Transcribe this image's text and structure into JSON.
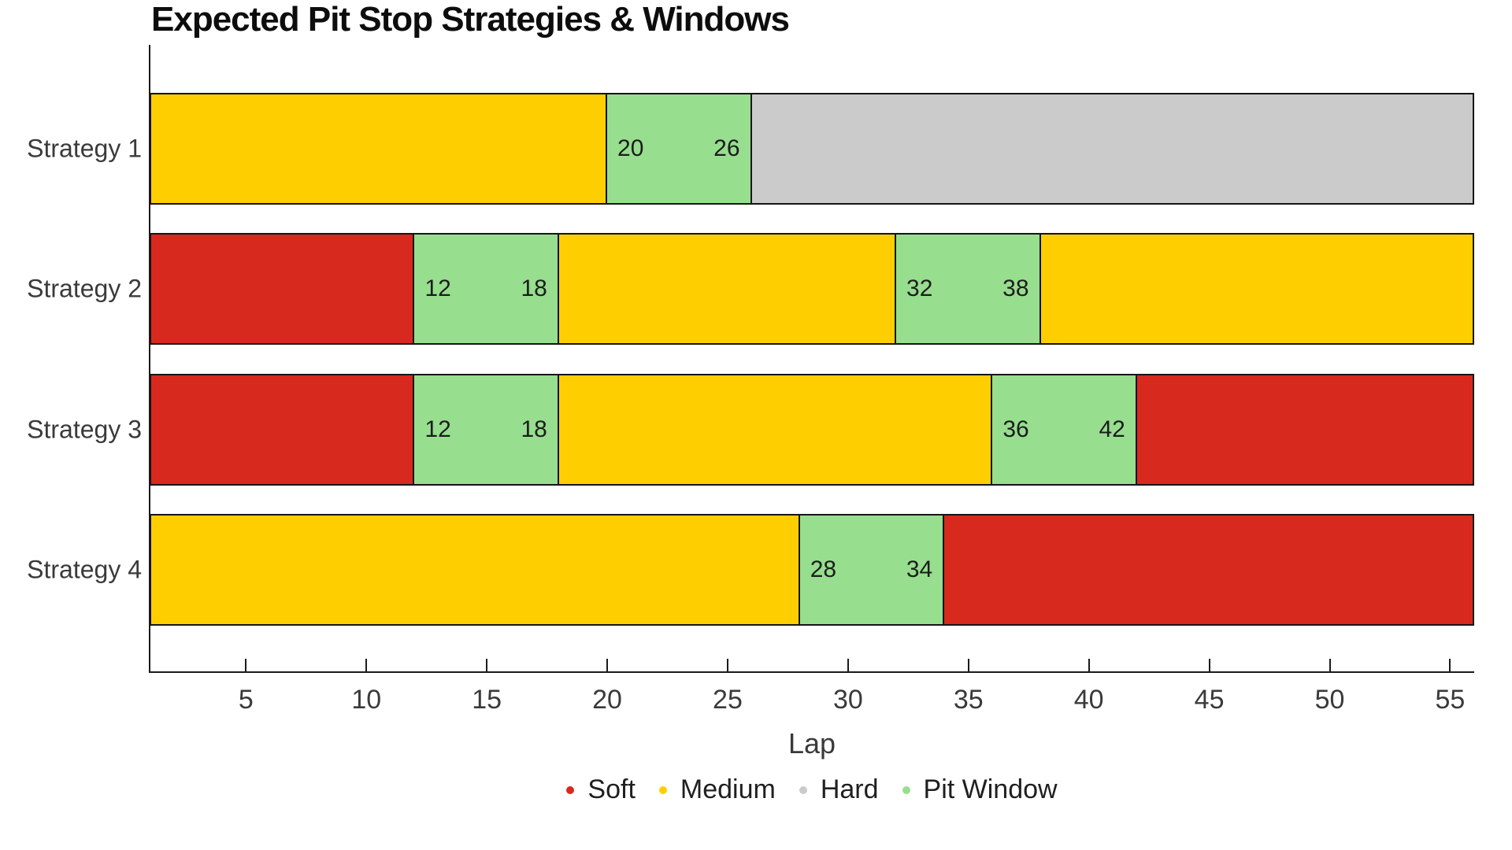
{
  "title": "Expected Pit Stop Strategies & Windows",
  "colors": {
    "soft": "#d7291d",
    "medium": "#ffce00",
    "hard": "#cbcbcb",
    "pit_window": "#97de8f",
    "bar_border": "#151515",
    "axis": "#1a1a1a",
    "label_text": "#3a3a3a",
    "title_text": "#0d0d0d"
  },
  "chart_data": {
    "type": "bar",
    "orientation": "horizontal-gantt",
    "title": "Expected Pit Stop Strategies & Windows",
    "xlabel": "Lap",
    "xlim": [
      1,
      56
    ],
    "x_ticks": [
      5,
      10,
      15,
      20,
      25,
      30,
      35,
      40,
      45,
      50,
      55
    ],
    "grid": false,
    "rows": [
      {
        "label": "Strategy 1",
        "segments": [
          {
            "compound": "medium",
            "start": 1,
            "end": 20
          },
          {
            "compound": "pit_window",
            "start": 20,
            "end": 26,
            "start_label": "20",
            "end_label": "26"
          },
          {
            "compound": "hard",
            "start": 26,
            "end": 56
          }
        ]
      },
      {
        "label": "Strategy 2",
        "segments": [
          {
            "compound": "soft",
            "start": 1,
            "end": 12
          },
          {
            "compound": "pit_window",
            "start": 12,
            "end": 18,
            "start_label": "12",
            "end_label": "18"
          },
          {
            "compound": "medium",
            "start": 18,
            "end": 32
          },
          {
            "compound": "pit_window",
            "start": 32,
            "end": 38,
            "start_label": "32",
            "end_label": "38"
          },
          {
            "compound": "medium",
            "start": 38,
            "end": 56
          }
        ]
      },
      {
        "label": "Strategy 3",
        "segments": [
          {
            "compound": "soft",
            "start": 1,
            "end": 12
          },
          {
            "compound": "pit_window",
            "start": 12,
            "end": 18,
            "start_label": "12",
            "end_label": "18"
          },
          {
            "compound": "medium",
            "start": 18,
            "end": 36
          },
          {
            "compound": "pit_window",
            "start": 36,
            "end": 42,
            "start_label": "36",
            "end_label": "42"
          },
          {
            "compound": "soft",
            "start": 42,
            "end": 56
          }
        ]
      },
      {
        "label": "Strategy 4",
        "segments": [
          {
            "compound": "medium",
            "start": 1,
            "end": 28
          },
          {
            "compound": "pit_window",
            "start": 28,
            "end": 34,
            "start_label": "28",
            "end_label": "34"
          },
          {
            "compound": "soft",
            "start": 34,
            "end": 56
          }
        ]
      }
    ],
    "legend": [
      {
        "label": "Soft",
        "color_key": "soft"
      },
      {
        "label": "Medium",
        "color_key": "medium"
      },
      {
        "label": "Hard",
        "color_key": "hard"
      },
      {
        "label": "Pit Window",
        "color_key": "pit_window"
      }
    ],
    "legend_position": "bottom-center"
  }
}
